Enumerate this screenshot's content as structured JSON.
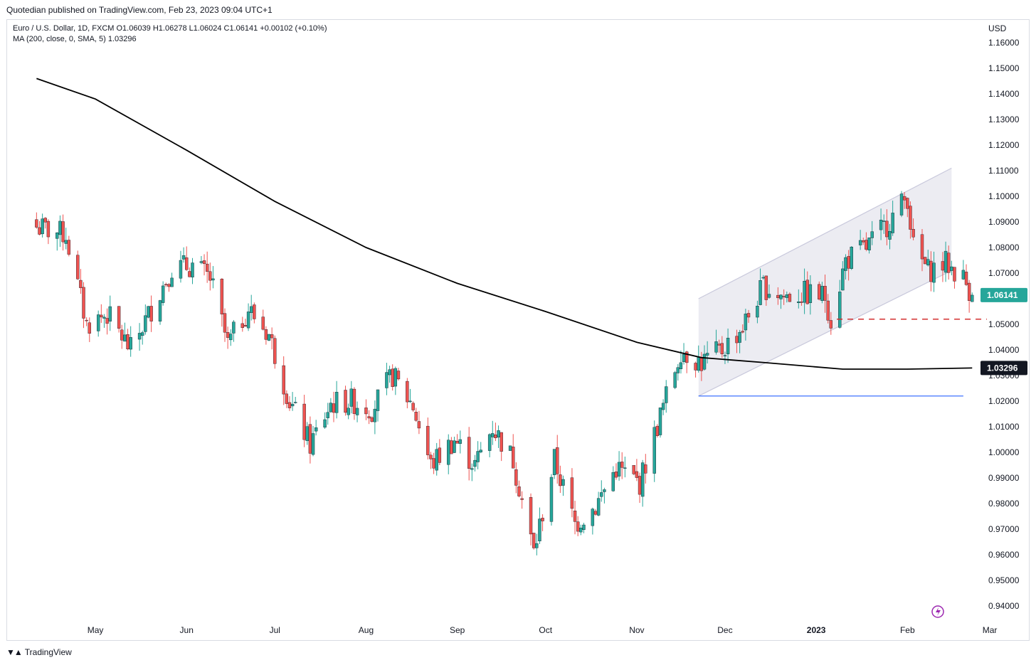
{
  "header": {
    "published": "Quotedian published on TradingView.com, Feb 23, 2023 09:04 UTC+1"
  },
  "legend": {
    "symbol_line": "Euro / U.S. Dollar, 1D, FXCM  O1.06039  H1.06278  L1.06024  C1.06141  +0.00102 (+0.10%)",
    "ma_line": "MA (200, close, 0, SMA, 5)  1.03296"
  },
  "footer": {
    "brand": "TradingView",
    "logo_icon": "tradingview-logo-icon"
  },
  "colors": {
    "up": "#26a69a",
    "down": "#ef5350",
    "ma": "#000000",
    "channel_fill": "#e9e9f0",
    "channel_edge": "#c9c9dc",
    "support_line": "#2962ff",
    "dashed_line": "#d32f2f",
    "last_price_tag": "#26a69a",
    "ma_tag": "#131722"
  },
  "chart_data": {
    "type": "candlestick",
    "symbol": "Euro / U.S. Dollar",
    "interval": "1D",
    "currency_label": "USD",
    "ylim": [
      0.935,
      1.168
    ],
    "y_ticks": [
      "1.16000",
      "1.15000",
      "1.14000",
      "1.13000",
      "1.12000",
      "1.11000",
      "1.10000",
      "1.09000",
      "1.08000",
      "1.07000",
      "1.06000",
      "1.05000",
      "1.04000",
      "1.03000",
      "1.02000",
      "1.01000",
      "1.00000",
      "0.99000",
      "0.98000",
      "0.97000",
      "0.96000",
      "0.95000",
      "0.94000"
    ],
    "x_ticks": [
      {
        "label": "May",
        "date": "2022-05-01",
        "bold": false
      },
      {
        "label": "Jun",
        "date": "2022-06-01",
        "bold": false
      },
      {
        "label": "Jul",
        "date": "2022-07-01",
        "bold": false
      },
      {
        "label": "Aug",
        "date": "2022-08-01",
        "bold": false
      },
      {
        "label": "Sep",
        "date": "2022-09-01",
        "bold": false
      },
      {
        "label": "Oct",
        "date": "2022-10-01",
        "bold": false
      },
      {
        "label": "Nov",
        "date": "2022-11-01",
        "bold": false
      },
      {
        "label": "Dec",
        "date": "2022-12-01",
        "bold": false
      },
      {
        "label": "2023",
        "date": "2023-01-01",
        "bold": true
      },
      {
        "label": "Feb",
        "date": "2023-02-01",
        "bold": false
      },
      {
        "label": "Mar",
        "date": "2023-03-01",
        "bold": false
      }
    ],
    "close_path": [
      [
        "2022-04-11",
        1.088
      ],
      [
        "2022-04-21",
        1.085
      ],
      [
        "2022-04-28",
        1.05
      ],
      [
        "2022-05-05",
        1.054
      ],
      [
        "2022-05-13",
        1.04
      ],
      [
        "2022-05-20",
        1.056
      ],
      [
        "2022-05-27",
        1.072
      ],
      [
        "2022-06-03",
        1.073
      ],
      [
        "2022-06-09",
        1.068
      ],
      [
        "2022-06-15",
        1.042
      ],
      [
        "2022-06-22",
        1.056
      ],
      [
        "2022-06-29",
        1.046
      ],
      [
        "2022-07-06",
        1.02
      ],
      [
        "2022-07-13",
        1.003
      ],
      [
        "2022-07-20",
        1.019
      ],
      [
        "2022-07-27",
        1.02
      ],
      [
        "2022-08-03",
        1.017
      ],
      [
        "2022-08-10",
        1.03
      ],
      [
        "2022-08-17",
        1.018
      ],
      [
        "2022-08-23",
        0.995
      ],
      [
        "2022-08-31",
        1.005
      ],
      [
        "2022-09-07",
        0.995
      ],
      [
        "2022-09-13",
        1.01
      ],
      [
        "2022-09-20",
        0.997
      ],
      [
        "2022-09-27",
        0.961
      ],
      [
        "2022-10-04",
        0.997
      ],
      [
        "2022-10-11",
        0.972
      ],
      [
        "2022-10-18",
        0.979
      ],
      [
        "2022-10-25",
        0.994
      ],
      [
        "2022-11-02",
        0.988
      ],
      [
        "2022-11-10",
        1.018
      ],
      [
        "2022-11-16",
        1.04
      ],
      [
        "2022-11-23",
        1.035
      ],
      [
        "2022-11-30",
        1.04
      ],
      [
        "2022-12-07",
        1.049
      ],
      [
        "2022-12-14",
        1.065
      ],
      [
        "2022-12-21",
        1.061
      ],
      [
        "2022-12-28",
        1.062
      ],
      [
        "2023-01-04",
        1.061
      ],
      [
        "2023-01-06",
        1.052
      ],
      [
        "2023-01-11",
        1.075
      ],
      [
        "2023-01-18",
        1.08
      ],
      [
        "2023-01-25",
        1.089
      ],
      [
        "2023-02-01",
        1.1
      ],
      [
        "2023-02-03",
        1.08
      ],
      [
        "2023-02-08",
        1.071
      ],
      [
        "2023-02-14",
        1.074
      ],
      [
        "2023-02-20",
        1.068
      ],
      [
        "2023-02-23",
        1.06141
      ]
    ],
    "ma_200": [
      [
        "2022-04-11",
        1.146
      ],
      [
        "2022-05-01",
        1.138
      ],
      [
        "2022-06-01",
        1.118
      ],
      [
        "2022-07-01",
        1.098
      ],
      [
        "2022-08-01",
        1.08
      ],
      [
        "2022-09-01",
        1.066
      ],
      [
        "2022-10-01",
        1.055
      ],
      [
        "2022-11-01",
        1.043
      ],
      [
        "2022-11-23",
        1.037
      ],
      [
        "2022-12-15",
        1.035
      ],
      [
        "2023-01-10",
        1.0325
      ],
      [
        "2023-02-01",
        1.0325
      ],
      [
        "2023-02-23",
        1.03296
      ]
    ],
    "channel": {
      "lower": [
        [
          "2022-11-22",
          1.022
        ],
        [
          "2023-02-16",
          1.071
        ]
      ],
      "upper": [
        [
          "2022-11-22",
          1.06
        ],
        [
          "2023-02-16",
          1.111
        ]
      ]
    },
    "support_line": {
      "value": 1.022,
      "from": "2022-11-22",
      "to": "2023-02-20"
    },
    "dashed_level": {
      "value": 1.052,
      "from": "2023-01-08",
      "to": "2023-02-28"
    },
    "last_price": {
      "value": 1.06141,
      "label": "1.06141"
    },
    "ma_value": {
      "value": 1.03296,
      "label": "1.03296"
    }
  }
}
